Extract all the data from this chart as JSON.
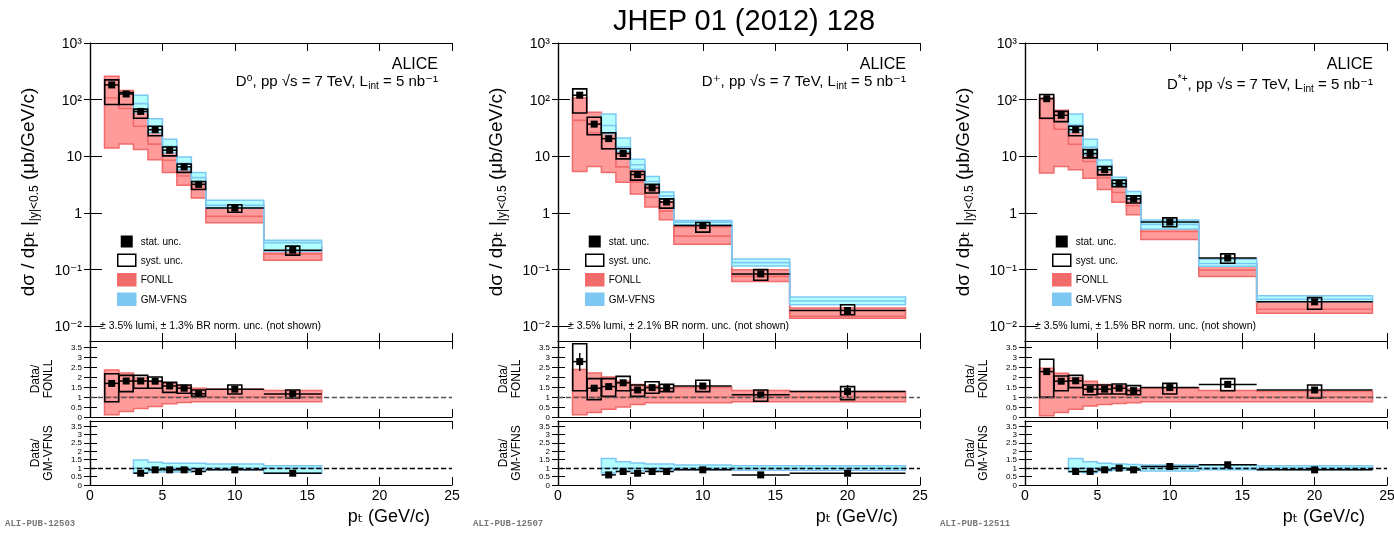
{
  "chart_data": [
    {
      "type": "scatter",
      "ylabel": "dσ / dpₜ |$_{|y|<0.5}$ (μb/GeV/c)",
      "log": "y",
      "xlim": [
        0,
        25
      ],
      "xticks": [
        0,
        5,
        10,
        15,
        20,
        25
      ],
      "ylim": [
        0.0055,
        1000
      ],
      "yticks": [
        {
          "value": 0.01,
          "label": "10⁻²"
        },
        {
          "value": 0.1,
          "label": "10⁻¹"
        },
        1,
        10,
        {
          "value": 100,
          "label": "10²"
        },
        {
          "value": 1000,
          "label": "10³"
        }
      ],
      "tick_labels": "y",
      "legend": "bottom left",
      "annotations": [
        "ALICE",
        "D⁰, pp √s = 7 TeV, L$_{int}$ = 5 nb⁻¹",
        "± 3.5% lumi, ± 1.3% BR norm. unc. (not shown)"
      ],
      "series": [
        {
          "name": "stat. unc.",
          "marker": "square",
          "color": "#000000",
          "x": [
            1.5,
            2.5,
            3.5,
            4.5,
            5.5,
            6.5,
            7.5,
            10,
            14
          ],
          "values": [
            182,
            126,
            62,
            29.5,
            12.8,
            6.5,
            3.2,
            1.22,
            0.22
          ],
          "xerrors": [
            0.5,
            0.5,
            0.5,
            0.5,
            0.5,
            0.5,
            0.5,
            2,
            2
          ]
        },
        {
          "name": "syst. unc.",
          "type": "bar",
          "color": "#000000",
          "x": [
            1.5,
            2.5,
            3.5,
            4.5,
            5.5,
            6.5,
            7.5,
            10,
            14
          ],
          "base": [
            82,
            82,
            47,
            23,
            10.2,
            5.2,
            2.6,
            1.03,
            0.18
          ],
          "values": [
            141,
            52,
            21,
            11,
            4.4,
            2.1,
            1,
            0.37,
            0.08
          ]
        },
        {
          "name": "FONLL",
          "type": "step",
          "color": "#f26b6b",
          "x": [
            1,
            2,
            3,
            4,
            5,
            6,
            7,
            8,
            12,
            16
          ],
          "values": [
            107,
            70,
            34,
            16.4,
            8.5,
            4.5,
            2.7,
            0.87,
            0.19,
            0.19
          ],
          "lower": [
            14,
            16.5,
            13.2,
            8.7,
            5.2,
            3.1,
            1.84,
            0.67,
            0.146,
            0.146
          ],
          "upper": [
            259,
            145,
            66,
            31,
            13.5,
            7.1,
            3.8,
            1.28,
            0.25,
            0.25
          ]
        },
        {
          "name": "GM-VFNS",
          "type": "step",
          "color": "#7cc8f2",
          "x": [
            3,
            4,
            5,
            6,
            7,
            8,
            12,
            16
          ],
          "values": [
            85,
            34,
            15,
            7.5,
            4.2,
            1.36,
            0.3,
            0.3
          ],
          "lower": [
            60,
            26,
            11.6,
            5.8,
            3.5,
            1.22,
            0.21,
            0.21
          ],
          "upper": [
            120,
            46,
            20,
            9.7,
            5.2,
            1.67,
            0.33,
            0.33
          ]
        }
      ]
    },
    {
      "type": "scatter",
      "title": "JHEP 01 (2012) 128",
      "ylabel": "dσ / dpₜ |$_{|y|<0.5}$ (μb/GeV/c)",
      "log": "y",
      "xlim": [
        0,
        25
      ],
      "xticks": [
        0,
        5,
        10,
        15,
        20,
        25
      ],
      "ylim": [
        0.0055,
        1000
      ],
      "yticks": [
        {
          "value": 0.01,
          "label": "10⁻²"
        },
        {
          "value": 0.1,
          "label": "10⁻¹"
        },
        1,
        10,
        {
          "value": 100,
          "label": "10²"
        },
        {
          "value": 1000,
          "label": "10³"
        }
      ],
      "tick_labels": "y",
      "legend": "bottom left",
      "annotations": [
        "ALICE",
        "D⁺, pp √s = 7 TeV, L$_{int}$ = 5 nb⁻¹",
        "± 3.5% lumi, ± 2.1% BR norm. unc. (not shown)"
      ],
      "series": [
        {
          "name": "stat. unc.",
          "marker": "square",
          "color": "#000000",
          "x": [
            1.5,
            2.5,
            3.5,
            4.5,
            5.5,
            6.5,
            7.5,
            10,
            14,
            20
          ],
          "values": [
            120,
            37,
            20.5,
            11.2,
            4.76,
            2.76,
            1.56,
            0.6,
            0.084,
            0.019
          ],
          "xerrors": [
            0.5,
            0.5,
            0.5,
            0.5,
            0.5,
            0.5,
            0.5,
            2,
            2,
            4
          ]
        },
        {
          "name": "syst. unc.",
          "type": "bar",
          "color": "#000000",
          "x": [
            1.5,
            2.5,
            3.5,
            4.5,
            5.5,
            6.5,
            7.5,
            10,
            14,
            20
          ],
          "base": [
            58,
            24,
            13.6,
            9,
            3.8,
            2.25,
            1.22,
            0.46,
            0.065,
            0.016
          ],
          "values": [
            97,
            25,
            12.4,
            4.6,
            1.6,
            0.95,
            0.55,
            0.22,
            0.035,
            0.008
          ]
        },
        {
          "name": "FONLL",
          "type": "step",
          "color": "#f26b6b",
          "x": [
            1,
            2,
            3,
            4,
            5,
            6,
            7,
            8,
            12,
            16,
            24
          ],
          "values": [
            43,
            26,
            13.5,
            6.5,
            3.5,
            1.9,
            1.08,
            0.39,
            0.076,
            0.015,
            0.015
          ],
          "lower": [
            5.4,
            6.6,
            5.2,
            3.5,
            2.16,
            1.28,
            0.76,
            0.28,
            0.062,
            0.0139,
            0.0139
          ],
          "upper": [
            107,
            60,
            26.5,
            11.8,
            5.8,
            2.95,
            1.6,
            0.57,
            0.1,
            0.021,
            0.021
          ]
        },
        {
          "name": "GM-VFNS",
          "type": "step",
          "color": "#7cc8f2",
          "x": [
            3,
            4,
            5,
            6,
            7,
            8,
            12,
            16,
            24
          ],
          "values": [
            35,
            14.5,
            7.1,
            3.6,
            2,
            0.69,
            0.133,
            0.028,
            0.028
          ],
          "lower": [
            25,
            12,
            5.9,
            3.1,
            1.74,
            0.62,
            0.116,
            0.024,
            0.024
          ],
          "upper": [
            56,
            21,
            8.9,
            4.4,
            2.35,
            0.74,
            0.154,
            0.033,
            0.033
          ]
        }
      ]
    },
    {
      "type": "scatter",
      "ylabel": "dσ / dpₜ |$_{|y|<0.5}$ (μb/GeV/c)",
      "log": "y",
      "xlim": [
        0,
        25
      ],
      "xticks": [
        0,
        5,
        10,
        15,
        20,
        25
      ],
      "ylim": [
        0.0055,
        1000
      ],
      "yticks": [
        {
          "value": 0.01,
          "label": "10⁻²"
        },
        {
          "value": 0.1,
          "label": "10⁻¹"
        },
        1,
        10,
        {
          "value": 100,
          "label": "10²"
        },
        {
          "value": 1000,
          "label": "10³"
        }
      ],
      "tick_labels": "y",
      "legend": "bottom left",
      "annotations": [
        "ALICE",
        "D$^{*+}$, pp √s = 7 TeV, L$_{int}$ = 5 nb⁻¹",
        "± 3.5% lumi, ± 1.5% BR norm. unc. (not shown)"
      ],
      "series": [
        {
          "name": "stat. unc.",
          "marker": "square",
          "color": "#000000",
          "x": [
            1.5,
            2.5,
            3.5,
            4.5,
            5.5,
            6.5,
            7.5,
            10,
            14,
            20
          ],
          "values": [
            104,
            53,
            29.5,
            11.2,
            5.8,
            3.3,
            1.77,
            0.69,
            0.16,
            0.027
          ],
          "xerrors": [
            0.5,
            0.5,
            0.5,
            0.5,
            0.5,
            0.5,
            0.5,
            2,
            2,
            4
          ]
        },
        {
          "name": "syst. unc.",
          "type": "bar",
          "color": "#000000",
          "x": [
            1.5,
            2.5,
            3.5,
            4.5,
            5.5,
            6.5,
            7.5,
            10,
            14,
            20
          ],
          "base": [
            47,
            41,
            23,
            9.4,
            4.7,
            2.9,
            1.5,
            0.57,
            0.13,
            0.02
          ],
          "values": [
            76,
            21,
            11,
            3.7,
            1.9,
            0.9,
            0.5,
            0.25,
            0.06,
            0.012
          ]
        },
        {
          "name": "FONLL",
          "type": "step",
          "color": "#f26b6b",
          "x": [
            1,
            2,
            3,
            4,
            5,
            6,
            7,
            8,
            12,
            16,
            24
          ],
          "values": [
            46,
            30,
            16.3,
            8.1,
            4.2,
            2.3,
            1.34,
            0.47,
            0.098,
            0.02,
            0.02
          ],
          "lower": [
            5.1,
            6.6,
            5.8,
            4.1,
            2.6,
            1.54,
            0.93,
            0.34,
            0.076,
            0.017,
            0.017
          ],
          "upper": [
            107,
            65,
            29.5,
            14,
            7.1,
            3.9,
            2.1,
            0.68,
            0.13,
            0.028,
            0.028
          ]
        },
        {
          "name": "GM-VFNS",
          "type": "step",
          "color": "#7cc8f2",
          "x": [
            3,
            4,
            5,
            6,
            7,
            8,
            12,
            16,
            24
          ],
          "values": [
            35.5,
            14.5,
            6.7,
            3.4,
            1.97,
            0.63,
            0.128,
            0.03,
            0.03
          ],
          "lower": [
            27,
            10.6,
            5.6,
            3,
            1.71,
            0.52,
            0.115,
            0.027,
            0.027
          ],
          "upper": [
            56,
            20,
            8.6,
            4.25,
            2.4,
            0.75,
            0.152,
            0.0345,
            0.0345
          ]
        }
      ]
    },
    {
      "type": "scatter",
      "ylabel": "Data/FONLL",
      "xlim": [
        0,
        25
      ],
      "xticks": [
        0,
        5,
        10,
        15,
        20,
        25
      ],
      "ylim": [
        0,
        3.8
      ],
      "yticks": [
        0,
        0.5,
        1,
        1.5,
        2,
        2.5,
        3,
        3.5
      ],
      "tick_labels": "y",
      "ref_lines": [
        {
          "axis": "y",
          "value": 1,
          "line_style": "dashed",
          "color": "#555555"
        }
      ],
      "series": [
        {
          "type": "step",
          "color": "#f26b6b",
          "x": [
            1,
            2,
            3,
            4,
            5,
            6,
            7,
            8,
            12,
            16
          ],
          "values": [
            1,
            1,
            1,
            1,
            1,
            1,
            1,
            1,
            1,
            1
          ],
          "lower": [
            0.11,
            0.27,
            0.42,
            0.52,
            0.66,
            0.73,
            0.76,
            0.76,
            0.76,
            0.76
          ],
          "upper": [
            2.35,
            2.2,
            1.95,
            1.79,
            1.68,
            1.55,
            1.44,
            1.39,
            1.32,
            1.32
          ]
        },
        {
          "type": "bar",
          "color": "#000000",
          "x": [
            1.5,
            2.5,
            3.5,
            4.5,
            5.5,
            6.5,
            7.5,
            10,
            14
          ],
          "base": [
            0.76,
            1.27,
            1.44,
            1.44,
            1.23,
            1.19,
            1.03,
            1.15,
            0.95
          ],
          "values": [
            1.4,
            0.81,
            0.64,
            0.56,
            0.5,
            0.41,
            0.32,
            0.45,
            0.4
          ]
        },
        {
          "marker": "square",
          "color": "#000000",
          "x": [
            1.5,
            2.5,
            3.5,
            4.5,
            5.5,
            6.5,
            7.5,
            10,
            14
          ],
          "values": [
            1.68,
            1.8,
            1.8,
            1.79,
            1.55,
            1.44,
            1.16,
            1.39,
            1.15
          ],
          "xerrors": [
            0.5,
            0.5,
            0.5,
            0.5,
            0.5,
            0.5,
            0.5,
            2,
            2
          ]
        }
      ]
    },
    {
      "type": "scatter",
      "ylabel": "Data/FONLL",
      "xlim": [
        0,
        25
      ],
      "xticks": [
        0,
        5,
        10,
        15,
        20,
        25
      ],
      "ylim": [
        0,
        3.8
      ],
      "yticks": [
        0,
        0.5,
        1,
        1.5,
        2,
        2.5,
        3,
        3.5
      ],
      "tick_labels": "y",
      "ref_lines": [
        {
          "axis": "y",
          "value": 1,
          "line_style": "dashed",
          "color": "#555555"
        }
      ],
      "series": [
        {
          "type": "step",
          "color": "#f26b6b",
          "x": [
            1,
            2,
            3,
            4,
            5,
            6,
            7,
            8,
            12,
            16,
            24
          ],
          "values": [
            1,
            1,
            1,
            1,
            1,
            1,
            1,
            1,
            1,
            1,
            1
          ],
          "lower": [
            0.11,
            0.23,
            0.39,
            0.5,
            0.63,
            0.71,
            0.71,
            0.71,
            0.76,
            0.76,
            0.76
          ],
          "upper": [
            2.37,
            2.2,
            2,
            1.79,
            1.63,
            1.55,
            1.44,
            1.47,
            1.32,
            1.27,
            1.27
          ]
        },
        {
          "type": "bar",
          "color": "#000000",
          "x": [
            1.5,
            2.5,
            3.5,
            4.5,
            5.5,
            6.5,
            7.5,
            10,
            14,
            20
          ],
          "base": [
            1.31,
            0.87,
            1.03,
            1.31,
            1.03,
            1.19,
            1.27,
            1.27,
            0.79,
            0.87
          ],
          "values": [
            2.35,
            1.05,
            0.89,
            0.72,
            0.57,
            0.57,
            0.36,
            0.57,
            0.56,
            0.65
          ]
        },
        {
          "marker": "square",
          "color": "#000000",
          "x": [
            1.5,
            2.5,
            3.5,
            4.5,
            5.5,
            6.5,
            7.5,
            10,
            14,
            20
          ],
          "values": [
            2.77,
            1.44,
            1.52,
            1.71,
            1.35,
            1.47,
            1.44,
            1.55,
            1.11,
            1.27
          ],
          "xerrors": [
            0.5,
            0.5,
            0.5,
            0.5,
            0.5,
            0.5,
            0.5,
            2,
            2,
            4
          ],
          "errors": [
            [
              2.3,
              3.2
            ],
            null,
            null,
            null,
            null,
            null,
            null,
            null,
            null,
            [
              1,
              1.6
            ]
          ]
        }
      ]
    },
    {
      "type": "scatter",
      "ylabel": "Data/FONLL",
      "xlim": [
        0,
        25
      ],
      "xticks": [
        0,
        5,
        10,
        15,
        20,
        25
      ],
      "ylim": [
        0,
        3.8
      ],
      "yticks": [
        0,
        0.5,
        1,
        1.5,
        2,
        2.5,
        3,
        3.5
      ],
      "tick_labels": "y",
      "ref_lines": [
        {
          "axis": "y",
          "value": 1,
          "line_style": "dashed",
          "color": "#555555"
        }
      ],
      "series": [
        {
          "type": "step",
          "color": "#f26b6b",
          "x": [
            1,
            2,
            3,
            4,
            5,
            6,
            7,
            8,
            12,
            16,
            24
          ],
          "values": [
            1,
            1,
            1,
            1,
            1,
            1,
            1,
            1,
            1,
            1,
            1
          ],
          "lower": [
            0.06,
            0.23,
            0.39,
            0.55,
            0.63,
            0.68,
            0.71,
            0.76,
            0.76,
            0.76,
            0.76
          ],
          "upper": [
            2.44,
            2.19,
            1.95,
            1.79,
            1.63,
            1.55,
            1.4,
            1.44,
            1.32,
            1.27,
            1.27
          ]
        },
        {
          "type": "bar",
          "color": "#000000",
          "x": [
            1.5,
            2.5,
            3.5,
            4.5,
            5.5,
            6.5,
            7.5,
            10,
            14,
            20
          ],
          "base": [
            0.98,
            1.31,
            1.47,
            1.11,
            1.15,
            1.15,
            1.11,
            1.15,
            1.31,
            0.95
          ],
          "values": [
            1.91,
            0.74,
            0.61,
            0.49,
            0.45,
            0.5,
            0.46,
            0.53,
            0.61,
            0.65
          ]
        },
        {
          "marker": "square",
          "color": "#000000",
          "x": [
            1.5,
            2.5,
            3.5,
            4.5,
            5.5,
            6.5,
            7.5,
            10,
            14,
            20
          ],
          "values": [
            2.27,
            1.79,
            1.81,
            1.39,
            1.39,
            1.44,
            1.32,
            1.47,
            1.63,
            1.35
          ],
          "xerrors": [
            0.5,
            0.5,
            0.5,
            0.5,
            0.5,
            0.5,
            0.5,
            2,
            2,
            4
          ]
        }
      ]
    },
    {
      "type": "scatter",
      "ylabel": "Data/GM-VFNS",
      "xlabel": "pₜ (GeV/c)",
      "xlim": [
        0,
        25
      ],
      "xticks": [
        0,
        5,
        10,
        15,
        20,
        25
      ],
      "ylim": [
        0,
        3.8
      ],
      "yticks": [
        0,
        0.5,
        1,
        1.5,
        2,
        2.5,
        3,
        3.5
      ],
      "annotations": [
        "ALI-PUB-12503"
      ],
      "ref_lines": [
        {
          "axis": "y",
          "value": 1,
          "line_style": "dashed",
          "color": "#000000"
        }
      ],
      "series": [
        {
          "type": "step",
          "color": "#7cc8f2",
          "x": [
            3,
            4,
            5,
            6,
            7,
            8,
            12,
            16
          ],
          "values": [
            1,
            1,
            1,
            1,
            1,
            1,
            1,
            1
          ],
          "lower": [
            0.71,
            0.77,
            0.77,
            0.77,
            0.83,
            0.9,
            0.71,
            0.71
          ],
          "upper": [
            1.48,
            1.35,
            1.29,
            1.29,
            1.29,
            1.25,
            1.15,
            1.15
          ]
        },
        {
          "marker": "square",
          "color": "#000000",
          "x": [
            3.5,
            4.5,
            5.5,
            6.5,
            7.5,
            10,
            14
          ],
          "values": [
            0.7,
            0.9,
            0.9,
            0.9,
            0.8,
            0.9,
            0.7
          ],
          "xerrors": [
            0.5,
            0.5,
            0.5,
            0.5,
            0.5,
            2,
            2
          ]
        }
      ]
    },
    {
      "type": "scatter",
      "ylabel": "Data/GM-VFNS",
      "xlabel": "pₜ (GeV/c)",
      "xlim": [
        0,
        25
      ],
      "xticks": [
        0,
        5,
        10,
        15,
        20,
        25
      ],
      "ylim": [
        0,
        3.8
      ],
      "yticks": [
        0,
        0.5,
        1,
        1.5,
        2,
        2.5,
        3,
        3.5
      ],
      "annotations": [
        "ALI-PUB-12507"
      ],
      "ref_lines": [
        {
          "axis": "y",
          "value": 1,
          "line_style": "dashed",
          "color": "#000000"
        }
      ],
      "series": [
        {
          "type": "step",
          "color": "#7cc8f2",
          "x": [
            3,
            4,
            5,
            6,
            7,
            8,
            12,
            16,
            24
          ],
          "values": [
            1,
            1,
            1,
            1,
            1,
            1,
            1,
            1,
            1
          ],
          "lower": [
            0.71,
            0.83,
            0.83,
            0.87,
            0.87,
            0.9,
            0.87,
            0.87,
            0.87
          ],
          "upper": [
            1.58,
            1.38,
            1.31,
            1.25,
            1.25,
            1.19,
            1.15,
            1.15,
            1.15
          ]
        },
        {
          "marker": "square",
          "color": "#000000",
          "x": [
            3.5,
            4.5,
            5.5,
            6.5,
            7.5,
            10,
            14,
            20
          ],
          "values": [
            0.6,
            0.8,
            0.7,
            0.8,
            0.8,
            0.9,
            0.6,
            0.7
          ],
          "xerrors": [
            0.5,
            0.5,
            0.5,
            0.5,
            0.5,
            2,
            2,
            4
          ]
        }
      ]
    },
    {
      "type": "scatter",
      "ylabel": "Data/GM-VFNS",
      "xlabel": "pₜ (GeV/c)",
      "xlim": [
        0,
        25
      ],
      "xticks": [
        0,
        5,
        10,
        15,
        20,
        25
      ],
      "ylim": [
        0,
        3.8
      ],
      "yticks": [
        0,
        0.5,
        1,
        1.5,
        2,
        2.5,
        3,
        3.5
      ],
      "annotations": [
        "ALI-PUB-12511"
      ],
      "ref_lines": [
        {
          "axis": "y",
          "value": 1,
          "line_style": "dashed",
          "color": "#000000"
        }
      ],
      "series": [
        {
          "type": "step",
          "color": "#7cc8f2",
          "x": [
            3,
            4,
            5,
            6,
            7,
            8,
            12,
            16,
            24
          ],
          "values": [
            1,
            1,
            1,
            1,
            1,
            1,
            1,
            1,
            1
          ],
          "lower": [
            0.77,
            0.73,
            0.83,
            0.87,
            0.87,
            0.83,
            0.9,
            0.9,
            0.9
          ],
          "upper": [
            1.58,
            1.38,
            1.29,
            1.25,
            1.21,
            1.19,
            1.19,
            1.15,
            1.15
          ]
        },
        {
          "marker": "square",
          "color": "#000000",
          "x": [
            3.5,
            4.5,
            5.5,
            6.5,
            7.5,
            10,
            14,
            20
          ],
          "values": [
            0.8,
            0.8,
            0.9,
            1,
            0.9,
            1.1,
            1.2,
            0.9
          ],
          "xerrors": [
            0.5,
            0.5,
            0.5,
            0.5,
            0.5,
            2,
            2,
            4
          ]
        }
      ]
    }
  ]
}
